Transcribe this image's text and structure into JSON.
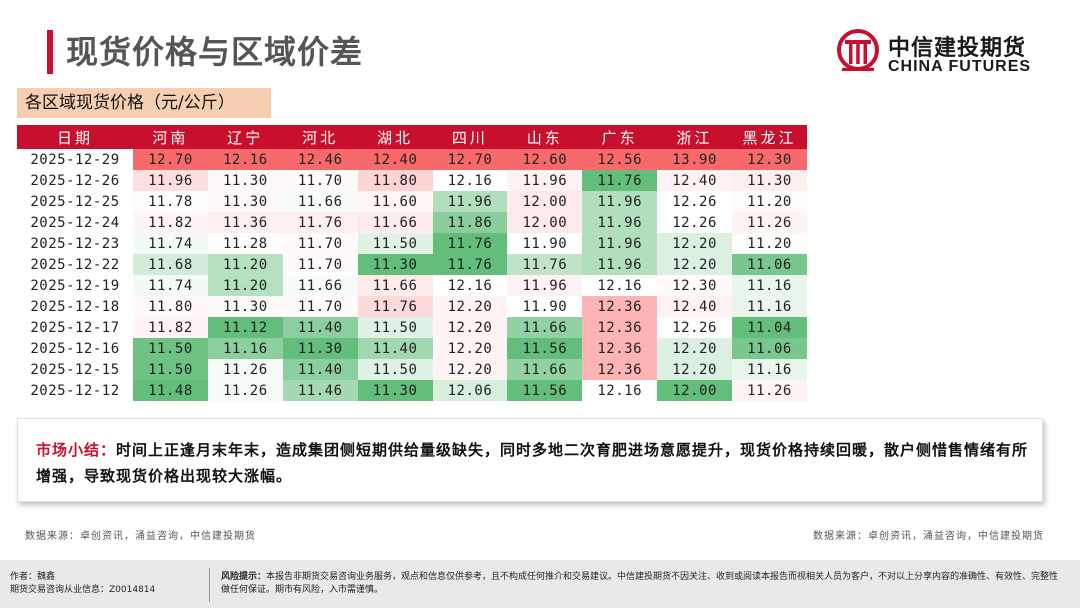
{
  "header": {
    "title": "现货价格与区域价差",
    "logo_cn": "中信建投期货",
    "logo_en": "CHINA FUTURES"
  },
  "table": {
    "subtitle": "各区域现货价格（元/公斤）",
    "columns": [
      "日期",
      "河南",
      "辽宁",
      "河北",
      "湖北",
      "四川",
      "山东",
      "广东",
      "浙江",
      "黑龙江"
    ],
    "rows": [
      [
        "2025-12-29",
        "12.70",
        "12.16",
        "12.46",
        "12.40",
        "12.70",
        "12.60",
        "12.56",
        "13.90",
        "12.30"
      ],
      [
        "2025-12-26",
        "11.96",
        "11.30",
        "11.70",
        "11.80",
        "12.16",
        "11.96",
        "11.76",
        "12.40",
        "11.30"
      ],
      [
        "2025-12-25",
        "11.78",
        "11.30",
        "11.66",
        "11.60",
        "11.96",
        "12.00",
        "11.96",
        "12.26",
        "11.20"
      ],
      [
        "2025-12-24",
        "11.82",
        "11.36",
        "11.76",
        "11.66",
        "11.86",
        "12.00",
        "11.96",
        "12.26",
        "11.26"
      ],
      [
        "2025-12-23",
        "11.74",
        "11.28",
        "11.70",
        "11.50",
        "11.76",
        "11.90",
        "11.96",
        "12.20",
        "11.20"
      ],
      [
        "2025-12-22",
        "11.68",
        "11.20",
        "11.70",
        "11.30",
        "11.76",
        "11.76",
        "11.96",
        "12.20",
        "11.06"
      ],
      [
        "2025-12-19",
        "11.74",
        "11.20",
        "11.66",
        "11.66",
        "12.16",
        "11.96",
        "12.16",
        "12.30",
        "11.16"
      ],
      [
        "2025-12-18",
        "11.80",
        "11.30",
        "11.70",
        "11.76",
        "12.20",
        "11.90",
        "12.36",
        "12.40",
        "11.16"
      ],
      [
        "2025-12-17",
        "11.82",
        "11.12",
        "11.40",
        "11.50",
        "12.20",
        "11.66",
        "12.36",
        "12.26",
        "11.04"
      ],
      [
        "2025-12-16",
        "11.50",
        "11.16",
        "11.30",
        "11.40",
        "12.20",
        "11.56",
        "12.36",
        "12.20",
        "11.06"
      ],
      [
        "2025-12-15",
        "11.50",
        "11.26",
        "11.40",
        "11.50",
        "12.20",
        "11.66",
        "12.36",
        "12.20",
        "11.16"
      ],
      [
        "2025-12-12",
        "11.48",
        "11.26",
        "11.46",
        "11.30",
        "12.06",
        "11.56",
        "12.16",
        "12.00",
        "11.26"
      ]
    ],
    "colors": {
      "header_bg": "#c8102e",
      "high": "#f8696b",
      "mid": "#ffffff",
      "low": "#63be7b"
    }
  },
  "summary": {
    "label": "市场小结：",
    "text": "时间上正逢月末年末，造成集团侧短期供给量级缺失，同时多地二次育肥进场意愿提升，现货价格持续回暖，散户侧惜售情绪有所增强，导致现货价格出现较大涨幅。"
  },
  "sources": {
    "left": "数据来源：卓创资讯，涌益咨询，中信建投期货",
    "right": "数据来源：卓创资讯，涌益咨询，中信建投期货"
  },
  "footer": {
    "author": "作者：魏鑫",
    "license": "期货交易咨询从业信息：Z0014814",
    "risk_label": "风险提示：",
    "risk_text": "本报告非期货交易咨询业务服务，观点和信息仅供参考，且不构成任何推介和交易建议。中信建投期货不因关注、收到或阅读本报告而视相关人员为客户，不对以上分享内容的准确性、有效性、完整性做任何保证。期市有风险，入市需谨慎。"
  }
}
